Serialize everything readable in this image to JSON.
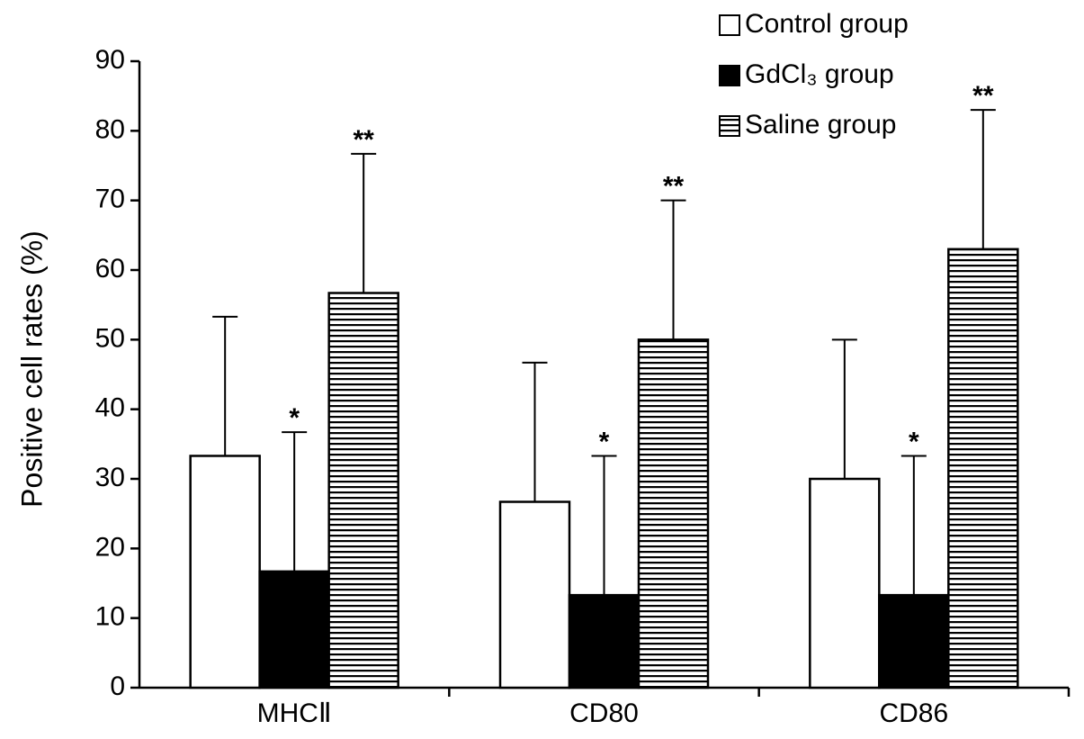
{
  "chart_data": {
    "type": "bar",
    "y_label": "Positive cell rates (%)",
    "categories": [
      "MHCⅡ",
      "CD80",
      "CD86"
    ],
    "series": [
      {
        "name": "Control group",
        "color": "#ffffff",
        "values": [
          33.3,
          26.7,
          30
        ],
        "errors": [
          20,
          20,
          20
        ]
      },
      {
        "name": "GdCl₃ group",
        "color": "#000000",
        "values": [
          16.7,
          13.3,
          13.3
        ],
        "errors": [
          20,
          20,
          20
        ],
        "annotations": [
          "*",
          "*",
          "*"
        ]
      },
      {
        "name": "Saline group",
        "color": "#000000",
        "pattern": "horizontal-lines",
        "values": [
          56.7,
          50,
          63
        ],
        "errors": [
          20,
          20,
          20
        ],
        "annotations": [
          "**",
          "**",
          "**"
        ]
      }
    ],
    "ylim": [
      0,
      90
    ],
    "yticks": [
      0,
      10,
      20,
      30,
      40,
      50,
      60,
      70,
      80,
      90
    ],
    "legend": "upper right",
    "grid": false
  }
}
